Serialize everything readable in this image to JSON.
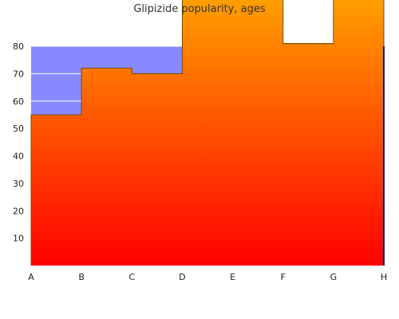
{
  "chart_data": {
    "type": "area",
    "title": "Glipizide popularity, ages",
    "xlabel": "",
    "ylabel": "",
    "categories": [
      "A",
      "B",
      "C",
      "D",
      "E",
      "F",
      "G",
      "H"
    ],
    "yticks": [
      10,
      20,
      30,
      40,
      50,
      60,
      70,
      80
    ],
    "ylim": [
      0,
      80
    ],
    "step": "post",
    "series": [
      {
        "values": [
          55,
          72,
          70,
          104,
          104,
          81,
          104,
          80
        ]
      }
    ],
    "grid": false,
    "colors": {
      "background_band": "#8888ff",
      "band_gridline": "#ffffff",
      "area_top": "#ffaa00",
      "area_bottom": "#ff0000",
      "area_outline": "#7a4a00",
      "axis_right": "#1a1a66"
    }
  }
}
